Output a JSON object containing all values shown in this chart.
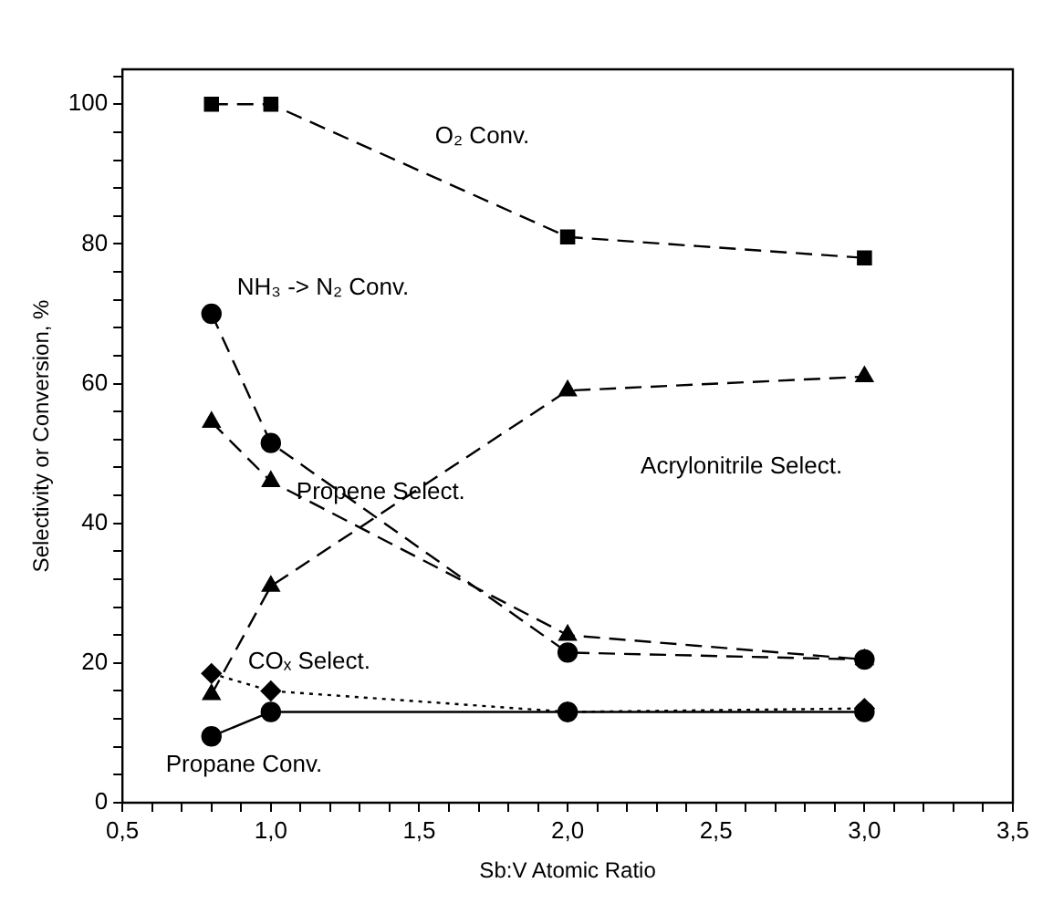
{
  "chart_data": {
    "type": "line",
    "xlabel": "Sb:V Atomic Ratio",
    "ylabel": "Selectivity or Conversion, %",
    "xlim": [
      0.5,
      3.5
    ],
    "xticks": [
      {
        "value": 0.5,
        "label": "0,5"
      },
      {
        "value": 0.6,
        "label": null
      },
      {
        "value": 0.7,
        "label": null
      },
      {
        "value": 0.8,
        "label": null
      },
      {
        "value": 0.9,
        "label": null
      },
      {
        "value": 1.0,
        "label": "1,0"
      },
      {
        "value": 1.1,
        "label": null
      },
      {
        "value": 1.2,
        "label": null
      },
      {
        "value": 1.3,
        "label": null
      },
      {
        "value": 1.4,
        "label": null
      },
      {
        "value": 1.5,
        "label": "1,5"
      },
      {
        "value": 1.6,
        "label": null
      },
      {
        "value": 1.7,
        "label": null
      },
      {
        "value": 1.8,
        "label": null
      },
      {
        "value": 1.9,
        "label": null
      },
      {
        "value": 2.0,
        "label": "2,0"
      },
      {
        "value": 2.1,
        "label": null
      },
      {
        "value": 2.2,
        "label": null
      },
      {
        "value": 2.3,
        "label": null
      },
      {
        "value": 2.4,
        "label": null
      },
      {
        "value": 2.5,
        "label": "2,5"
      },
      {
        "value": 2.6,
        "label": null
      },
      {
        "value": 2.7,
        "label": null
      },
      {
        "value": 2.8,
        "label": null
      },
      {
        "value": 2.9,
        "label": null
      },
      {
        "value": 3.0,
        "label": "3,0"
      },
      {
        "value": 3.1,
        "label": null
      },
      {
        "value": 3.2,
        "label": null
      },
      {
        "value": 3.3,
        "label": null
      },
      {
        "value": 3.4,
        "label": null
      },
      {
        "value": 3.5,
        "label": "3,5"
      }
    ],
    "ylim": [
      0,
      105
    ],
    "yticks": [
      0,
      {
        "value": 4,
        "label": null
      },
      {
        "value": 8,
        "label": null
      },
      {
        "value": 12,
        "label": null
      },
      {
        "value": 16,
        "label": null
      },
      20,
      {
        "value": 24,
        "label": null
      },
      {
        "value": 28,
        "label": null
      },
      {
        "value": 32,
        "label": null
      },
      {
        "value": 36,
        "label": null
      },
      40,
      {
        "value": 44,
        "label": null
      },
      {
        "value": 48,
        "label": null
      },
      {
        "value": 52,
        "label": null
      },
      {
        "value": 56,
        "label": null
      },
      60,
      {
        "value": 64,
        "label": null
      },
      {
        "value": 68,
        "label": null
      },
      {
        "value": 72,
        "label": null
      },
      {
        "value": 76,
        "label": null
      },
      80,
      {
        "value": 84,
        "label": null
      },
      {
        "value": 88,
        "label": null
      },
      {
        "value": 92,
        "label": null
      },
      {
        "value": 96,
        "label": null
      },
      100,
      {
        "value": 104,
        "label": null
      }
    ],
    "x": [
      0.8,
      1.0,
      2.0,
      3.0
    ],
    "grid": false,
    "legend": false,
    "series": [
      {
        "name": "O₂ Conv.",
        "color": "#000000",
        "marker": "square",
        "line_style": "dashed",
        "values": [
          100,
          100,
          81,
          78
        ]
      },
      {
        "name": "NH₃ -> N₂ Conv.",
        "color": "#000000",
        "marker": "circle",
        "line_style": "dashed",
        "values": [
          70,
          51.5,
          21.5,
          20.5
        ]
      },
      {
        "name": "Acrylonitrile Select.",
        "color": "#000000",
        "marker": "triangle",
        "line_style": "dashed",
        "values": [
          15.5,
          31,
          59,
          61
        ]
      },
      {
        "name": "Propene Select.",
        "color": "#000000",
        "marker": "triangle",
        "line_style": "dashed",
        "values": [
          54.5,
          46,
          24,
          20.5
        ]
      },
      {
        "name": "COₓ Select.",
        "color": "#000000",
        "marker": "diamond",
        "line_style": "dotted",
        "values": [
          18.5,
          16,
          13,
          13.5
        ]
      },
      {
        "name": "Propane Conv.",
        "color": "#000000",
        "marker": "circle",
        "line_style": "solid",
        "values": [
          9.5,
          13,
          13,
          13
        ]
      }
    ]
  }
}
